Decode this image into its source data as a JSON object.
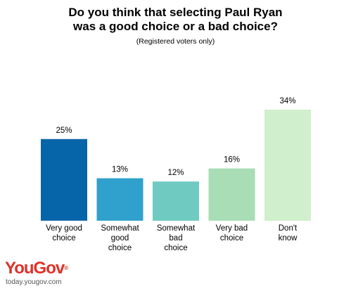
{
  "header": {
    "title": "Do you think that selecting Paul Ryan\nwas a good choice or a bad choice?",
    "subtitle": "(Registered voters only)"
  },
  "brand": {
    "logo_text": "YouGov",
    "logo_mark": "®",
    "url": "today.yougov.com",
    "color": "#e03127"
  },
  "chart_data": {
    "type": "bar",
    "categories": [
      "Very good choice",
      "Somewhat good choice",
      "Somewhat bad choice",
      "Very bad choice",
      "Don't know"
    ],
    "category_lines": [
      [
        "Very good",
        "choice"
      ],
      [
        "Somewhat",
        "good",
        "choice"
      ],
      [
        "Somewhat",
        "bad",
        "choice"
      ],
      [
        "Very bad",
        "choice"
      ],
      [
        "Don't",
        "know"
      ]
    ],
    "values": [
      25,
      13,
      12,
      16,
      34
    ],
    "value_labels": [
      "25%",
      "13%",
      "12%",
      "16%",
      "34%"
    ],
    "colors": [
      "#0565a8",
      "#2fa1cc",
      "#6fcbc1",
      "#a8ddb5",
      "#d0efcc"
    ],
    "title": "",
    "xlabel": "",
    "ylabel": "",
    "ylim": [
      0,
      34
    ],
    "grid": false
  }
}
